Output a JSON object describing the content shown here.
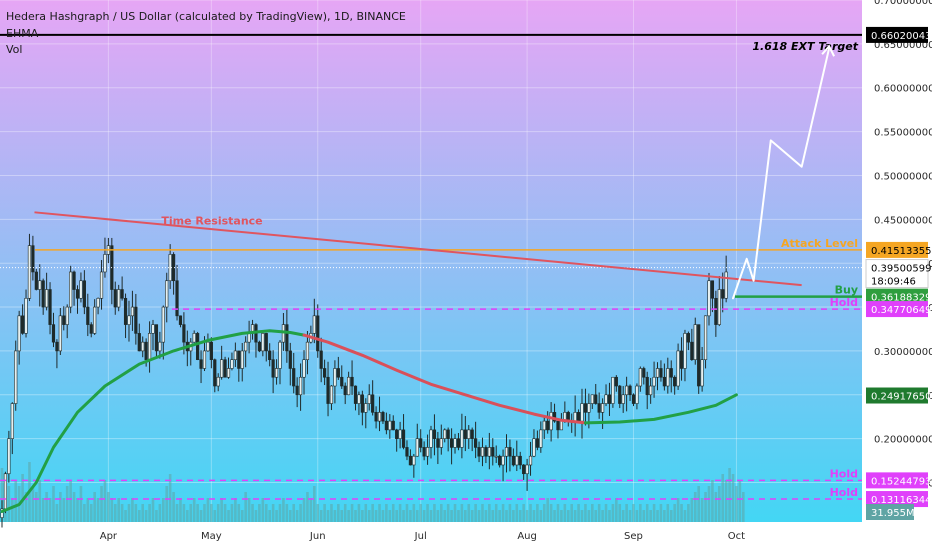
{
  "header": {
    "title": "Hedera Hashgraph / US Dollar (calculated by TradingView), 1D, BINANCE",
    "indicator1": "EHMA",
    "indicator2": "Vol"
  },
  "colors": {
    "bg_top": "#e6a6f5",
    "bg_bottom": "#43d6f4",
    "candle": "#1e2a2a",
    "ema_green": "#22a045",
    "ema_red": "#d9505a",
    "resistance": "#e0555f",
    "attack": "#f5a623",
    "hold_dash": "#e040fb",
    "target_line": "#000000",
    "volume": "#5fa4a4",
    "projection": "#ffffff"
  },
  "chart_data": {
    "type": "candlestick",
    "symbol": "HBARUSD",
    "interval": "1D",
    "ylim": [
      0.105,
      0.7
    ],
    "x_axis": [
      "Apr",
      "May",
      "Jun",
      "Jul",
      "Aug",
      "Sep",
      "Oct"
    ],
    "y_ticks": [
      "0.70000000",
      "0.65000000",
      "0.60000000",
      "0.55000000",
      "0.50000000",
      "0.45000000",
      "0.40000000",
      "0.35000000",
      "0.30000000",
      "0.25000000",
      "0.20000000",
      "0.15000000"
    ],
    "price_levels": [
      {
        "label": "1.618 EXT Target",
        "value": 0.66020043,
        "text": "0.66020043",
        "style": "target"
      },
      {
        "label": "Attack Level",
        "value": 0.41513355,
        "text": "0.41513355",
        "style": "attack"
      },
      {
        "label": "",
        "value": 0.39500599,
        "text": "0.39500599",
        "countdown": "18:09:46",
        "style": "current"
      },
      {
        "label": "Buy",
        "value": 0.36188329,
        "text": "0.36188329",
        "style": "buy"
      },
      {
        "label": "Hold",
        "value": 0.34770649,
        "text": "0.34770649",
        "style": "hold"
      },
      {
        "label": "",
        "value": 0.2491765,
        "text": "0.24917650",
        "style": "ema"
      },
      {
        "label": "Hold",
        "value": 0.15244793,
        "text": "0.15244793",
        "style": "hold"
      },
      {
        "label": "Hold",
        "value": 0.13116344,
        "text": "0.13116344",
        "style": "hold"
      }
    ],
    "volume_label": "31.955M",
    "annotations": [
      {
        "text": "Time Resistance",
        "type": "trendline",
        "start": [
          0.04,
          0.458
        ],
        "end": [
          0.93,
          0.375
        ]
      }
    ],
    "candles": [
      0.12,
      0.16,
      0.2,
      0.24,
      0.3,
      0.34,
      0.32,
      0.36,
      0.42,
      0.39,
      0.37,
      0.38,
      0.35,
      0.37,
      0.33,
      0.31,
      0.3,
      0.34,
      0.33,
      0.35,
      0.39,
      0.37,
      0.36,
      0.38,
      0.35,
      0.33,
      0.32,
      0.35,
      0.36,
      0.39,
      0.41,
      0.42,
      0.37,
      0.35,
      0.37,
      0.36,
      0.33,
      0.34,
      0.35,
      0.32,
      0.3,
      0.31,
      0.29,
      0.32,
      0.33,
      0.3,
      0.31,
      0.35,
      0.38,
      0.41,
      0.38,
      0.34,
      0.33,
      0.31,
      0.3,
      0.31,
      0.32,
      0.29,
      0.28,
      0.3,
      0.31,
      0.29,
      0.26,
      0.27,
      0.29,
      0.27,
      0.28,
      0.29,
      0.3,
      0.28,
      0.3,
      0.31,
      0.32,
      0.33,
      0.31,
      0.3,
      0.32,
      0.3,
      0.29,
      0.27,
      0.28,
      0.31,
      0.33,
      0.3,
      0.28,
      0.26,
      0.25,
      0.27,
      0.29,
      0.31,
      0.32,
      0.34,
      0.3,
      0.28,
      0.27,
      0.24,
      0.26,
      0.28,
      0.27,
      0.26,
      0.25,
      0.27,
      0.26,
      0.24,
      0.25,
      0.23,
      0.24,
      0.25,
      0.23,
      0.22,
      0.23,
      0.22,
      0.21,
      0.22,
      0.21,
      0.2,
      0.21,
      0.19,
      0.18,
      0.17,
      0.18,
      0.2,
      0.19,
      0.18,
      0.19,
      0.21,
      0.2,
      0.19,
      0.2,
      0.21,
      0.2,
      0.19,
      0.2,
      0.19,
      0.21,
      0.2,
      0.21,
      0.2,
      0.19,
      0.18,
      0.19,
      0.18,
      0.19,
      0.18,
      0.18,
      0.17,
      0.18,
      0.19,
      0.18,
      0.17,
      0.18,
      0.17,
      0.16,
      0.17,
      0.18,
      0.2,
      0.19,
      0.21,
      0.22,
      0.21,
      0.23,
      0.22,
      0.21,
      0.22,
      0.23,
      0.22,
      0.22,
      0.23,
      0.22,
      0.24,
      0.23,
      0.24,
      0.25,
      0.24,
      0.23,
      0.24,
      0.25,
      0.24,
      0.27,
      0.26,
      0.24,
      0.25,
      0.26,
      0.25,
      0.24,
      0.26,
      0.28,
      0.27,
      0.25,
      0.26,
      0.27,
      0.28,
      0.27,
      0.26,
      0.28,
      0.27,
      0.26,
      0.3,
      0.28,
      0.32,
      0.31,
      0.29,
      0.33,
      0.26,
      0.29,
      0.34,
      0.38,
      0.36,
      0.33,
      0.37,
      0.36,
      0.39
    ],
    "ema_green_points": [
      [
        0,
        0.117
      ],
      [
        5,
        0.125
      ],
      [
        10,
        0.15
      ],
      [
        15,
        0.19
      ],
      [
        22,
        0.23
      ],
      [
        30,
        0.26
      ],
      [
        40,
        0.285
      ],
      [
        50,
        0.3
      ],
      [
        60,
        0.312
      ],
      [
        70,
        0.32
      ],
      [
        78,
        0.323
      ],
      [
        84,
        0.321
      ],
      [
        88,
        0.318
      ]
    ],
    "ema_red_points": [
      [
        88,
        0.318
      ],
      [
        95,
        0.31
      ],
      [
        105,
        0.295
      ],
      [
        115,
        0.278
      ],
      [
        125,
        0.262
      ],
      [
        135,
        0.25
      ],
      [
        145,
        0.238
      ],
      [
        155,
        0.228
      ],
      [
        163,
        0.221
      ],
      [
        170,
        0.218
      ]
    ],
    "ema_green2_points": [
      [
        170,
        0.218
      ],
      [
        180,
        0.219
      ],
      [
        190,
        0.222
      ],
      [
        200,
        0.23
      ],
      [
        208,
        0.238
      ],
      [
        214,
        0.25
      ]
    ],
    "projection_points": [
      [
        213,
        0.36
      ],
      [
        217,
        0.405
      ],
      [
        219,
        0.38
      ],
      [
        224,
        0.54
      ],
      [
        233,
        0.51
      ],
      [
        241,
        0.645
      ]
    ],
    "volume": [
      0.9,
      0.5,
      0.6,
      0.4,
      0.7,
      0.6,
      0.8,
      0.5,
      1.0,
      0.6,
      0.5,
      0.7,
      0.4,
      0.5,
      0.4,
      0.6,
      0.3,
      0.5,
      0.4,
      0.6,
      0.7,
      0.5,
      0.4,
      0.6,
      0.3,
      0.4,
      0.3,
      0.5,
      0.4,
      0.6,
      0.7,
      0.5,
      0.4,
      0.3,
      0.4,
      0.3,
      0.2,
      0.3,
      0.4,
      0.3,
      0.2,
      0.3,
      0.2,
      0.3,
      0.4,
      0.2,
      0.3,
      0.4,
      0.6,
      0.8,
      0.5,
      0.3,
      0.4,
      0.3,
      0.2,
      0.3,
      0.4,
      0.3,
      0.2,
      0.3,
      0.4,
      0.3,
      0.2,
      0.3,
      0.4,
      0.3,
      0.2,
      0.3,
      0.4,
      0.3,
      0.2,
      0.5,
      0.4,
      0.3,
      0.2,
      0.3,
      0.4,
      0.3,
      0.2,
      0.3,
      0.2,
      0.3,
      0.4,
      0.3,
      0.2,
      0.3,
      0.2,
      0.3,
      0.4,
      0.5,
      0.4,
      0.6,
      0.3,
      0.2,
      0.3,
      0.2,
      0.3,
      0.2,
      0.3,
      0.2,
      0.3,
      0.2,
      0.3,
      0.2,
      0.3,
      0.2,
      0.3,
      0.2,
      0.3,
      0.2,
      0.3,
      0.2,
      0.3,
      0.2,
      0.3,
      0.2,
      0.3,
      0.2,
      0.3,
      0.2,
      0.3,
      0.2,
      0.3,
      0.2,
      0.3,
      0.2,
      0.3,
      0.2,
      0.3,
      0.2,
      0.3,
      0.2,
      0.3,
      0.2,
      0.3,
      0.2,
      0.3,
      0.2,
      0.3,
      0.2,
      0.3,
      0.2,
      0.3,
      0.2,
      0.3,
      0.2,
      0.3,
      0.2,
      0.3,
      0.2,
      0.3,
      0.2,
      0.3,
      0.2,
      0.3,
      0.2,
      0.3,
      0.2,
      0.3,
      0.4,
      0.3,
      0.2,
      0.3,
      0.2,
      0.3,
      0.2,
      0.3,
      0.2,
      0.3,
      0.2,
      0.3,
      0.2,
      0.3,
      0.2,
      0.3,
      0.2,
      0.3,
      0.2,
      0.3,
      0.4,
      0.3,
      0.2,
      0.3,
      0.2,
      0.3,
      0.2,
      0.3,
      0.2,
      0.3,
      0.2,
      0.3,
      0.2,
      0.3,
      0.2,
      0.3,
      0.2,
      0.3,
      0.4,
      0.3,
      0.2,
      0.3,
      0.4,
      0.5,
      0.6,
      0.4,
      0.5,
      0.6,
      0.7,
      0.5,
      0.6,
      0.8,
      0.7,
      0.9,
      0.8,
      0.6,
      0.7,
      0.5
    ]
  }
}
